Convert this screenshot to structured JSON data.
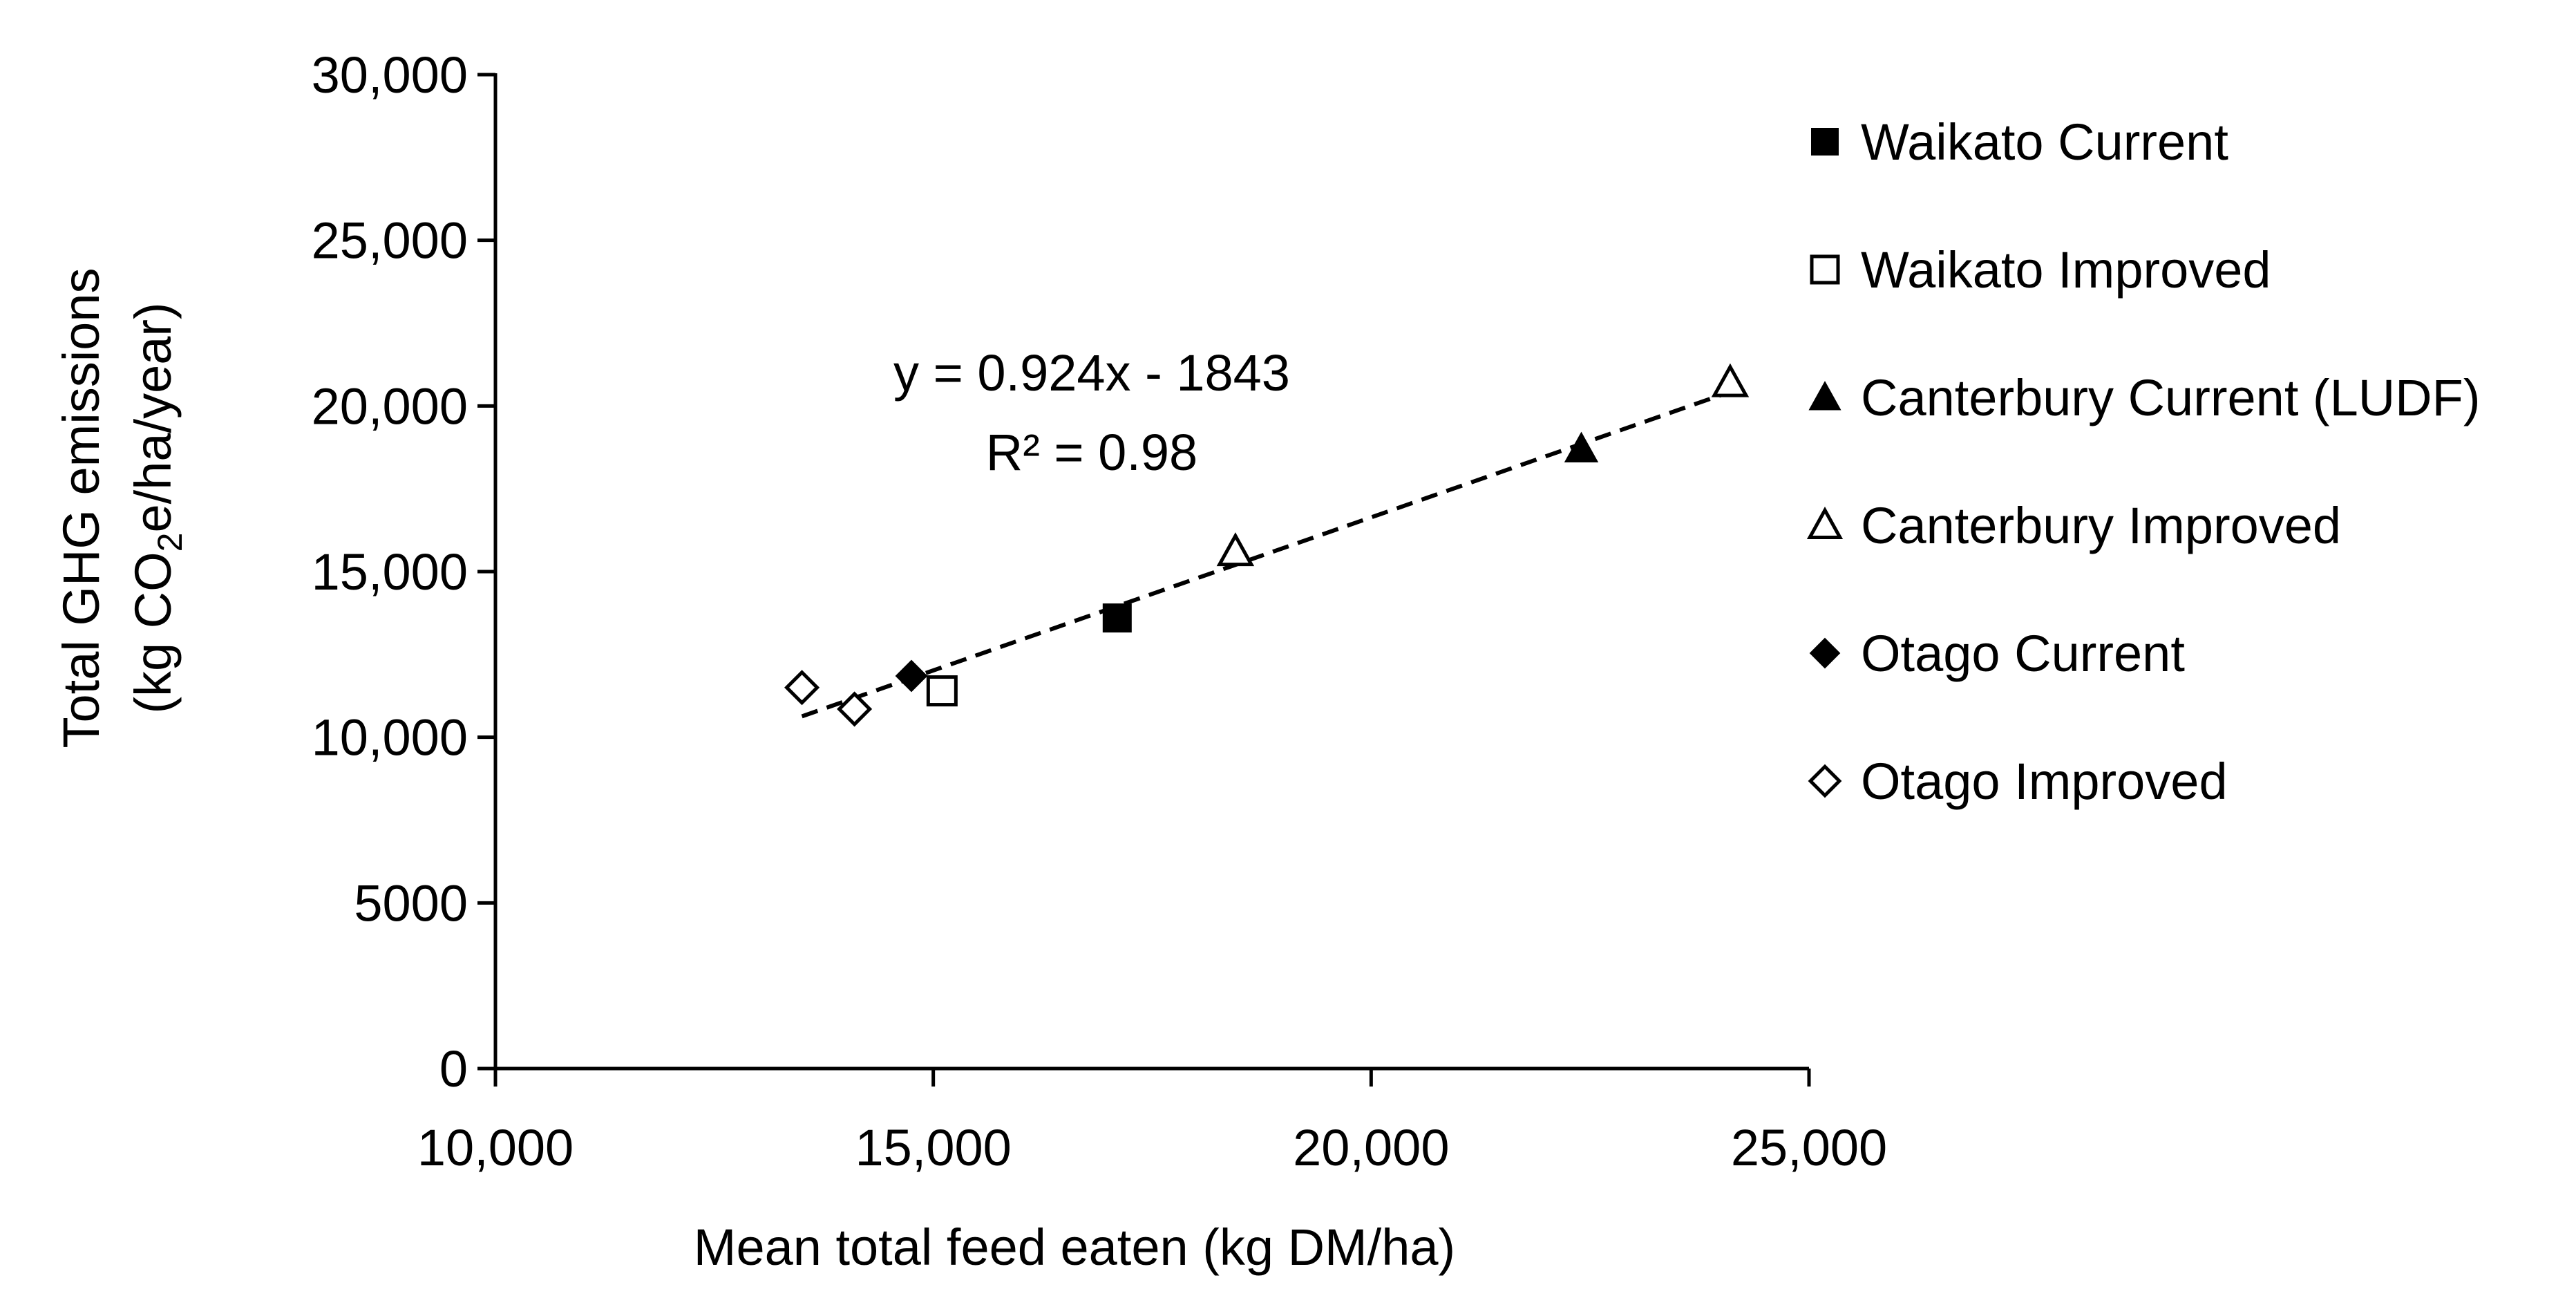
{
  "chart_data": {
    "type": "scatter",
    "title": "",
    "xlabel": "Mean total feed eaten (kg DM/ha)",
    "ylabel": {
      "line1": "Total GHG emissions",
      "line2_prefix": "(kg CO",
      "line2_sub": "2",
      "line2_suffix": "e/ha/year)"
    },
    "xlim": [
      10000,
      25000
    ],
    "ylim": [
      0,
      30000
    ],
    "x_ticks": [
      {
        "value": 10000,
        "label": "10,000"
      },
      {
        "value": 15000,
        "label": "15,000"
      },
      {
        "value": 20000,
        "label": "20,000"
      },
      {
        "value": 25000,
        "label": "25,000"
      }
    ],
    "y_ticks": [
      {
        "value": 0,
        "label": "0"
      },
      {
        "value": 5000,
        "label": "5000"
      },
      {
        "value": 10000,
        "label": "10,000"
      },
      {
        "value": 15000,
        "label": "15,000"
      },
      {
        "value": 20000,
        "label": "20,000"
      },
      {
        "value": 25000,
        "label": "25,000"
      },
      {
        "value": 30000,
        "label": "30,000"
      }
    ],
    "grid": false,
    "legend_position": "right",
    "series": [
      {
        "name": "Waikato Current",
        "marker": "square",
        "filled": true,
        "points": [
          {
            "x": 17100,
            "y": 13600
          }
        ]
      },
      {
        "name": "Waikato Improved",
        "marker": "square",
        "filled": false,
        "points": [
          {
            "x": 15100,
            "y": 11400
          }
        ]
      },
      {
        "name": "Canterbury Current (LUDF)",
        "marker": "triangle",
        "filled": true,
        "points": [
          {
            "x": 22400,
            "y": 18700
          }
        ]
      },
      {
        "name": "Canterbury Improved",
        "marker": "triangle",
        "filled": false,
        "points": [
          {
            "x": 18450,
            "y": 15600
          },
          {
            "x": 24100,
            "y": 20700
          }
        ]
      },
      {
        "name": "Otago Current",
        "marker": "diamond",
        "filled": true,
        "points": [
          {
            "x": 14750,
            "y": 11850
          }
        ]
      },
      {
        "name": "Otago Improved",
        "marker": "diamond",
        "filled": false,
        "points": [
          {
            "x": 13500,
            "y": 11500
          },
          {
            "x": 14100,
            "y": 10850
          }
        ]
      }
    ],
    "trendline": {
      "style": "dashed",
      "slope": 0.924,
      "intercept": -1843,
      "x_range": [
        13500,
        24100
      ],
      "equation_label": "y = 0.924x - 1843",
      "r2_label": "R² = 0.98"
    }
  }
}
